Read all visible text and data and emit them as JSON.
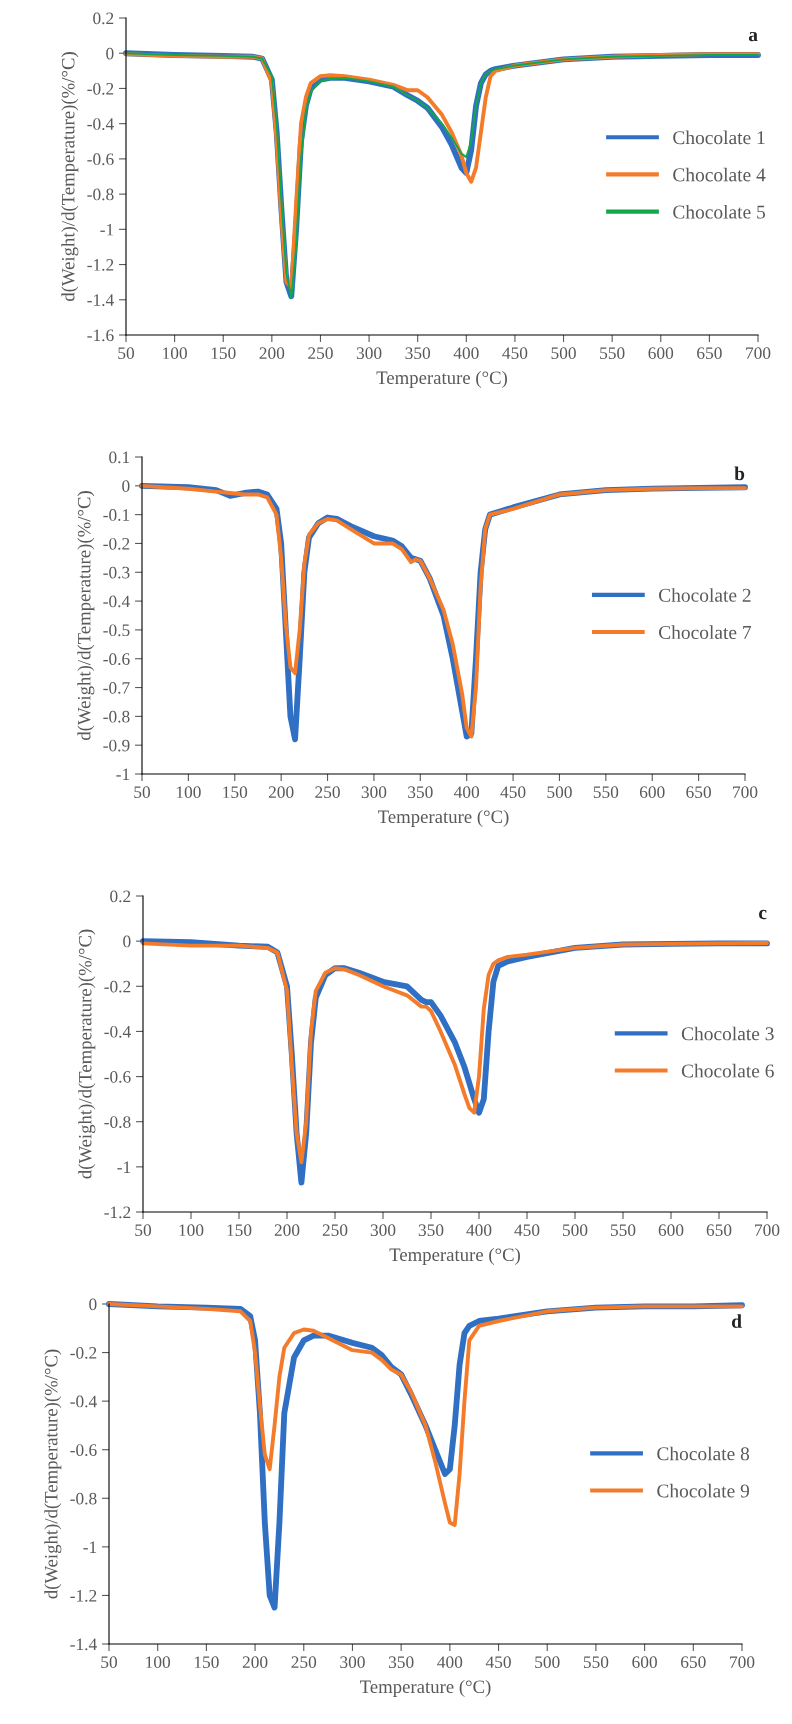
{
  "chart_data": [
    {
      "type": "line",
      "annotations": [
        "a"
      ],
      "xlabel": "Temperature (°C)",
      "ylabel": "d(Weight)/d(Temperature)(%/°C)",
      "xlim": [
        50,
        700
      ],
      "xticks": [
        50,
        100,
        150,
        200,
        250,
        300,
        350,
        400,
        450,
        500,
        550,
        600,
        650,
        700
      ],
      "ylim": [
        -1.6,
        0.2
      ],
      "yticks": [
        {
          "value": -1.6,
          "label": "-1.6"
        },
        {
          "value": -1.4,
          "label": "-1.4"
        },
        {
          "value": -1.2,
          "label": "-1.2"
        },
        {
          "value": -1,
          "label": "-1"
        },
        {
          "value": -0.8,
          "label": "-0.8"
        },
        {
          "value": -0.6,
          "label": "-0.6"
        },
        {
          "value": -0.4,
          "label": "-0.4"
        },
        {
          "value": -0.2,
          "label": "-0.2"
        },
        0,
        0.2
      ],
      "grid": false,
      "legend": "right",
      "marker": "none",
      "line_style": "solid",
      "x": [
        50,
        100,
        150,
        180,
        190,
        200,
        205,
        210,
        215,
        220,
        225,
        230,
        235,
        240,
        250,
        260,
        275,
        300,
        325,
        340,
        350,
        360,
        375,
        385,
        395,
        400,
        405,
        410,
        415,
        420,
        425,
        430,
        450,
        500,
        550,
        600,
        650,
        700
      ],
      "series": [
        {
          "name": "Chocolate 1",
          "color": "#2f6fc4",
          "values": [
            0,
            -0.01,
            -0.015,
            -0.02,
            -0.03,
            -0.15,
            -0.45,
            -0.9,
            -1.3,
            -1.38,
            -1.0,
            -0.5,
            -0.3,
            -0.2,
            -0.15,
            -0.14,
            -0.14,
            -0.16,
            -0.19,
            -0.24,
            -0.27,
            -0.31,
            -0.42,
            -0.52,
            -0.65,
            -0.68,
            -0.55,
            -0.3,
            -0.17,
            -0.12,
            -0.1,
            -0.09,
            -0.07,
            -0.035,
            -0.02,
            -0.015,
            -0.01,
            -0.01
          ]
        },
        {
          "name": "Chocolate 4",
          "color": "#f47b2a",
          "values": [
            -0.005,
            -0.015,
            -0.02,
            -0.02,
            -0.03,
            -0.17,
            -0.5,
            -0.95,
            -1.3,
            -1.33,
            -0.85,
            -0.4,
            -0.25,
            -0.17,
            -0.13,
            -0.125,
            -0.13,
            -0.15,
            -0.18,
            -0.21,
            -0.21,
            -0.25,
            -0.35,
            -0.45,
            -0.58,
            -0.68,
            -0.73,
            -0.65,
            -0.45,
            -0.25,
            -0.13,
            -0.1,
            -0.07,
            -0.035,
            -0.02,
            -0.01,
            -0.005,
            -0.005
          ]
        },
        {
          "name": "Chocolate 5",
          "color": "#12a84a",
          "values": [
            0,
            -0.01,
            -0.015,
            -0.02,
            -0.03,
            -0.13,
            -0.4,
            -0.85,
            -1.25,
            -1.39,
            -1.1,
            -0.6,
            -0.33,
            -0.22,
            -0.16,
            -0.145,
            -0.14,
            -0.16,
            -0.19,
            -0.24,
            -0.27,
            -0.31,
            -0.4,
            -0.48,
            -0.57,
            -0.59,
            -0.5,
            -0.3,
            -0.17,
            -0.12,
            -0.1,
            -0.09,
            -0.07,
            -0.035,
            -0.02,
            -0.015,
            -0.01,
            -0.01
          ]
        }
      ]
    },
    {
      "type": "line",
      "annotations": [
        "b"
      ],
      "xlabel": "Temperature (°C)",
      "ylabel": "d(Weight)/d(Temperature)(%/°C)",
      "xlim": [
        50,
        700
      ],
      "xticks": [
        50,
        100,
        150,
        200,
        250,
        300,
        350,
        400,
        450,
        500,
        550,
        600,
        650,
        700
      ],
      "ylim": [
        -1,
        0.1
      ],
      "yticks": [
        {
          "value": -1,
          "label": "-1"
        },
        {
          "value": -0.9,
          "label": "-0.9"
        },
        {
          "value": -0.8,
          "label": "-0.8"
        },
        {
          "value": -0.7,
          "label": "-0.7"
        },
        {
          "value": -0.6,
          "label": "-0.6"
        },
        {
          "value": -0.5,
          "label": "-0.5"
        },
        {
          "value": -0.4,
          "label": "-0.4"
        },
        {
          "value": -0.3,
          "label": "-0.3"
        },
        {
          "value": -0.2,
          "label": "-0.2"
        },
        {
          "value": -0.1,
          "label": "-0.1"
        },
        0,
        0.1
      ],
      "grid": false,
      "legend": "right",
      "marker": "none",
      "line_style": "solid",
      "x": [
        50,
        100,
        130,
        145,
        160,
        175,
        185,
        195,
        200,
        205,
        210,
        215,
        220,
        225,
        230,
        240,
        250,
        260,
        275,
        300,
        320,
        330,
        340,
        345,
        350,
        360,
        375,
        385,
        395,
        400,
        405,
        410,
        415,
        420,
        425,
        450,
        500,
        550,
        600,
        650,
        700
      ],
      "series": [
        {
          "name": "Chocolate 2",
          "color": "#2f6fc4",
          "values": [
            0,
            -0.005,
            -0.015,
            -0.035,
            -0.025,
            -0.02,
            -0.03,
            -0.08,
            -0.2,
            -0.5,
            -0.8,
            -0.88,
            -0.6,
            -0.3,
            -0.18,
            -0.13,
            -0.11,
            -0.115,
            -0.14,
            -0.175,
            -0.19,
            -0.21,
            -0.25,
            -0.255,
            -0.26,
            -0.32,
            -0.45,
            -0.6,
            -0.78,
            -0.87,
            -0.86,
            -0.6,
            -0.3,
            -0.15,
            -0.1,
            -0.075,
            -0.03,
            -0.015,
            -0.01,
            -0.007,
            -0.005
          ]
        },
        {
          "name": "Chocolate 7",
          "color": "#f47b2a",
          "values": [
            0,
            -0.01,
            -0.02,
            -0.025,
            -0.03,
            -0.03,
            -0.04,
            -0.1,
            -0.25,
            -0.48,
            -0.63,
            -0.65,
            -0.5,
            -0.27,
            -0.17,
            -0.13,
            -0.115,
            -0.12,
            -0.15,
            -0.2,
            -0.2,
            -0.22,
            -0.265,
            -0.255,
            -0.26,
            -0.32,
            -0.43,
            -0.55,
            -0.72,
            -0.84,
            -0.87,
            -0.7,
            -0.35,
            -0.15,
            -0.1,
            -0.08,
            -0.03,
            -0.015,
            -0.01,
            -0.008,
            -0.008
          ]
        }
      ]
    },
    {
      "type": "line",
      "annotations": [
        "c"
      ],
      "xlabel": "Temperature (°C)",
      "ylabel": "d(Weight)/d(Temperature)(%/°C)",
      "xlim": [
        50,
        700
      ],
      "xticks": [
        50,
        100,
        150,
        200,
        250,
        300,
        350,
        400,
        450,
        500,
        550,
        600,
        650,
        700
      ],
      "ylim": [
        -1.2,
        0.2
      ],
      "yticks": [
        {
          "value": -1.2,
          "label": "-1.2"
        },
        {
          "value": -1,
          "label": "-1"
        },
        {
          "value": -0.8,
          "label": "-0.8"
        },
        {
          "value": -0.6,
          "label": "-0.6"
        },
        {
          "value": -0.4,
          "label": "-0.4"
        },
        {
          "value": -0.2,
          "label": "-0.2"
        },
        0,
        0.2
      ],
      "grid": false,
      "legend": "right",
      "marker": "none",
      "line_style": "solid",
      "x": [
        50,
        100,
        150,
        180,
        190,
        200,
        205,
        210,
        215,
        220,
        225,
        230,
        240,
        250,
        260,
        275,
        300,
        325,
        340,
        345,
        350,
        360,
        375,
        385,
        390,
        395,
        400,
        405,
        410,
        415,
        420,
        430,
        450,
        500,
        550,
        600,
        650,
        700
      ],
      "series": [
        {
          "name": "Chocolate 3",
          "color": "#2f6fc4",
          "values": [
            0,
            -0.005,
            -0.02,
            -0.025,
            -0.05,
            -0.2,
            -0.5,
            -0.85,
            -1.07,
            -0.85,
            -0.45,
            -0.25,
            -0.15,
            -0.12,
            -0.12,
            -0.14,
            -0.18,
            -0.2,
            -0.26,
            -0.27,
            -0.27,
            -0.33,
            -0.45,
            -0.56,
            -0.63,
            -0.7,
            -0.76,
            -0.7,
            -0.4,
            -0.18,
            -0.11,
            -0.09,
            -0.07,
            -0.03,
            -0.015,
            -0.012,
            -0.01,
            -0.01
          ]
        },
        {
          "name": "Chocolate 6",
          "color": "#f47b2a",
          "values": [
            -0.01,
            -0.02,
            -0.02,
            -0.03,
            -0.05,
            -0.22,
            -0.55,
            -0.85,
            -0.98,
            -0.8,
            -0.4,
            -0.22,
            -0.14,
            -0.12,
            -0.125,
            -0.15,
            -0.2,
            -0.24,
            -0.29,
            -0.29,
            -0.31,
            -0.4,
            -0.55,
            -0.68,
            -0.74,
            -0.76,
            -0.6,
            -0.3,
            -0.15,
            -0.1,
            -0.085,
            -0.07,
            -0.06,
            -0.03,
            -0.015,
            -0.012,
            -0.01,
            -0.008
          ]
        }
      ]
    },
    {
      "type": "line",
      "annotations": [
        "d"
      ],
      "xlabel": "Temperature (°C)",
      "ylabel": "d(Weight)/d(Temperature)(%/°C)",
      "xlim": [
        50,
        700
      ],
      "xticks": [
        50,
        100,
        150,
        200,
        250,
        300,
        350,
        400,
        450,
        500,
        550,
        600,
        650,
        700
      ],
      "ylim": [
        -1.4,
        0
      ],
      "yticks": [
        {
          "value": -1.4,
          "label": "-1.4"
        },
        {
          "value": -1.2,
          "label": "-1.2"
        },
        {
          "value": -1,
          "label": "-1"
        },
        {
          "value": -0.8,
          "label": "-0.8"
        },
        {
          "value": -0.6,
          "label": "-0.6"
        },
        {
          "value": -0.4,
          "label": "-0.4"
        },
        {
          "value": -0.2,
          "label": "-0.2"
        },
        0
      ],
      "grid": false,
      "legend": "right",
      "marker": "none",
      "line_style": "solid",
      "x": [
        50,
        100,
        150,
        185,
        195,
        200,
        205,
        210,
        215,
        220,
        225,
        230,
        240,
        250,
        260,
        275,
        300,
        320,
        330,
        340,
        350,
        360,
        375,
        385,
        395,
        400,
        405,
        410,
        415,
        420,
        430,
        450,
        500,
        550,
        600,
        650,
        700
      ],
      "series": [
        {
          "name": "Chocolate 8",
          "color": "#2f6fc4",
          "values": [
            0,
            -0.01,
            -0.015,
            -0.02,
            -0.05,
            -0.15,
            -0.45,
            -0.9,
            -1.2,
            -1.25,
            -0.9,
            -0.45,
            -0.22,
            -0.15,
            -0.13,
            -0.13,
            -0.16,
            -0.18,
            -0.21,
            -0.26,
            -0.29,
            -0.37,
            -0.5,
            -0.6,
            -0.7,
            -0.68,
            -0.5,
            -0.25,
            -0.12,
            -0.09,
            -0.07,
            -0.06,
            -0.03,
            -0.015,
            -0.01,
            -0.01,
            -0.005
          ]
        },
        {
          "name": "Chocolate 9",
          "color": "#f47b2a",
          "values": [
            0,
            -0.01,
            -0.02,
            -0.03,
            -0.07,
            -0.2,
            -0.42,
            -0.62,
            -0.68,
            -0.5,
            -0.3,
            -0.18,
            -0.12,
            -0.105,
            -0.11,
            -0.14,
            -0.19,
            -0.2,
            -0.23,
            -0.27,
            -0.29,
            -0.36,
            -0.5,
            -0.65,
            -0.82,
            -0.9,
            -0.91,
            -0.7,
            -0.4,
            -0.15,
            -0.09,
            -0.07,
            -0.03,
            -0.015,
            -0.01,
            -0.01,
            -0.01
          ]
        }
      ]
    }
  ]
}
